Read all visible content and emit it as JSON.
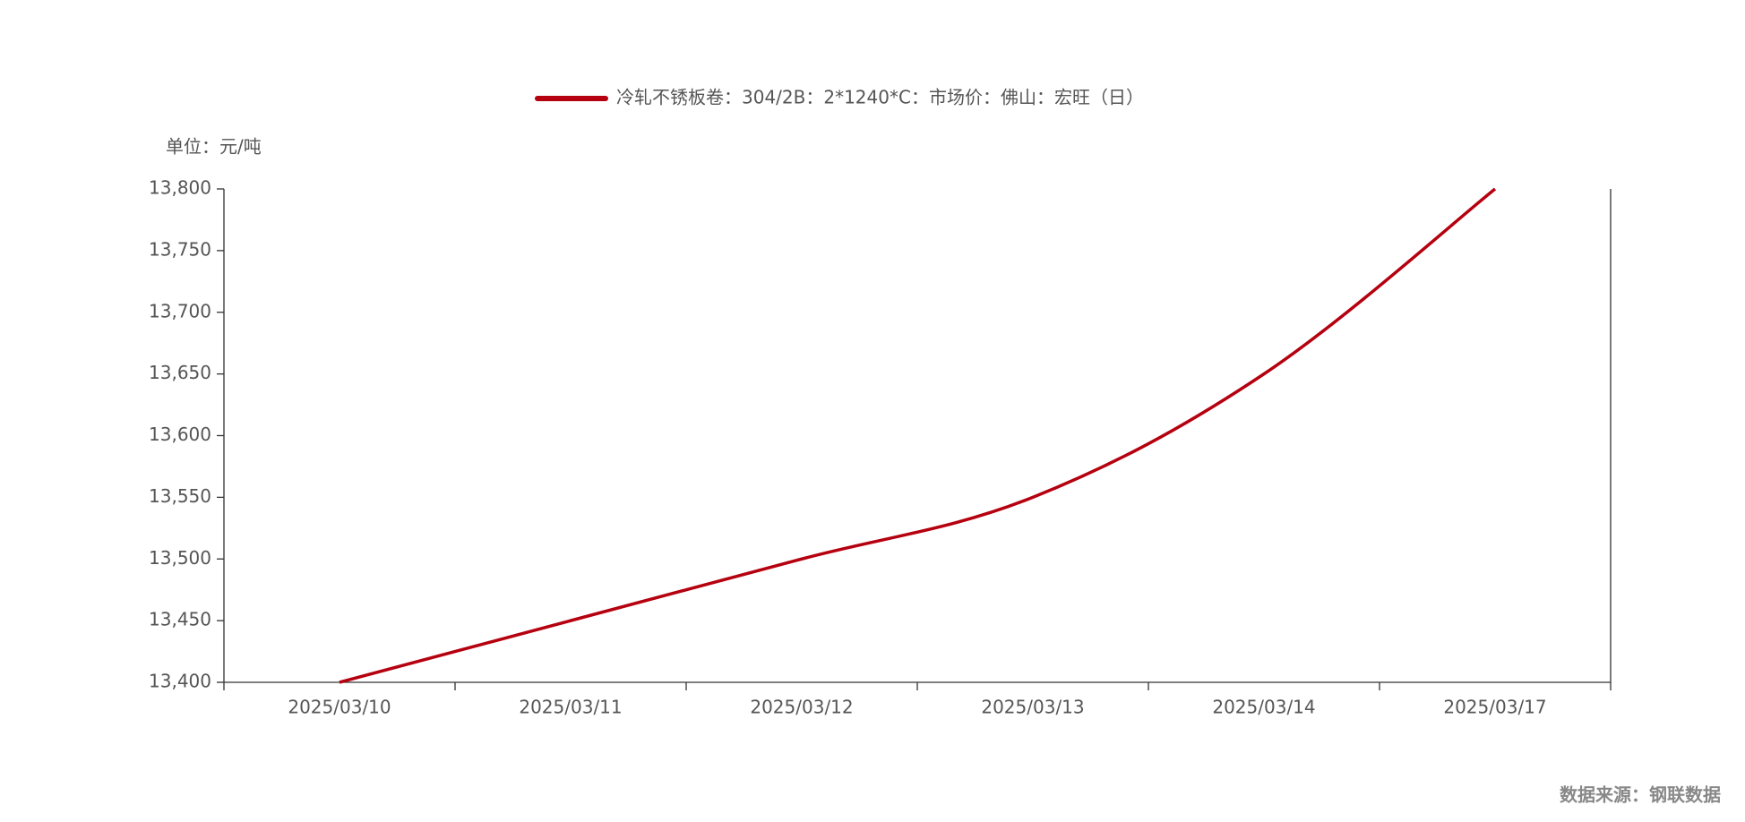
{
  "chart_data": {
    "type": "line",
    "y_axis_label": "单位：元/吨",
    "source": "数据来源：钢联数据",
    "categories": [
      "2025/03/10",
      "2025/03/11",
      "2025/03/12",
      "2025/03/13",
      "2025/03/14",
      "2025/03/17"
    ],
    "series": [
      {
        "name": "冷轧不锈板卷：304/2B：2*1240*C：市场价：佛山：宏旺（日）",
        "color": "#b5000f",
        "values": [
          13400,
          13450,
          13500,
          13550,
          13650,
          13800
        ]
      }
    ],
    "ylim": [
      13400,
      13800
    ],
    "yticks": [
      {
        "value": 13400,
        "label": "13,400"
      },
      {
        "value": 13450,
        "label": "13,450"
      },
      {
        "value": 13500,
        "label": "13,500"
      },
      {
        "value": 13550,
        "label": "13,550"
      },
      {
        "value": 13600,
        "label": "13,600"
      },
      {
        "value": 13650,
        "label": "13,650"
      },
      {
        "value": 13700,
        "label": "13,700"
      },
      {
        "value": 13750,
        "label": "13,750"
      },
      {
        "value": 13800,
        "label": "13,800"
      }
    ],
    "legend_position": "top"
  }
}
